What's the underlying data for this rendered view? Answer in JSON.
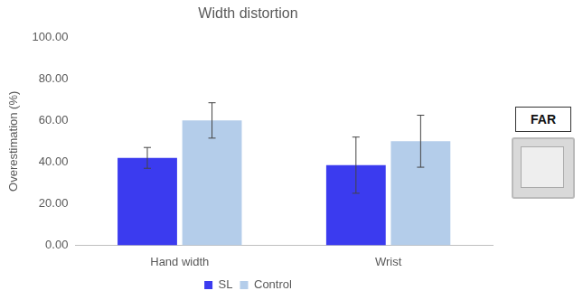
{
  "chart_data": {
    "type": "bar",
    "title": "Width distortion",
    "y_label": "Overestimation (%)",
    "categories": [
      "Hand width",
      "Wrist"
    ],
    "series": [
      {
        "name": "SL",
        "color": "#3b3bef",
        "values": [
          42,
          38.5
        ],
        "errors": [
          5,
          13.5
        ]
      },
      {
        "name": "Control",
        "color": "#b4cdea",
        "values": [
          60,
          50
        ],
        "errors": [
          8.5,
          12.5
        ]
      }
    ],
    "ylim": [
      0,
      100
    ],
    "yticks": [
      {
        "value": 0,
        "label": "0.00"
      },
      {
        "value": 20,
        "label": "20.00"
      },
      {
        "value": 40,
        "label": "40.00"
      },
      {
        "value": 60,
        "label": "60.00"
      },
      {
        "value": 80,
        "label": "80.00"
      },
      {
        "value": 100,
        "label": "100.00"
      }
    ],
    "grid": false,
    "legend": "bottom",
    "annotation": "FAR"
  }
}
